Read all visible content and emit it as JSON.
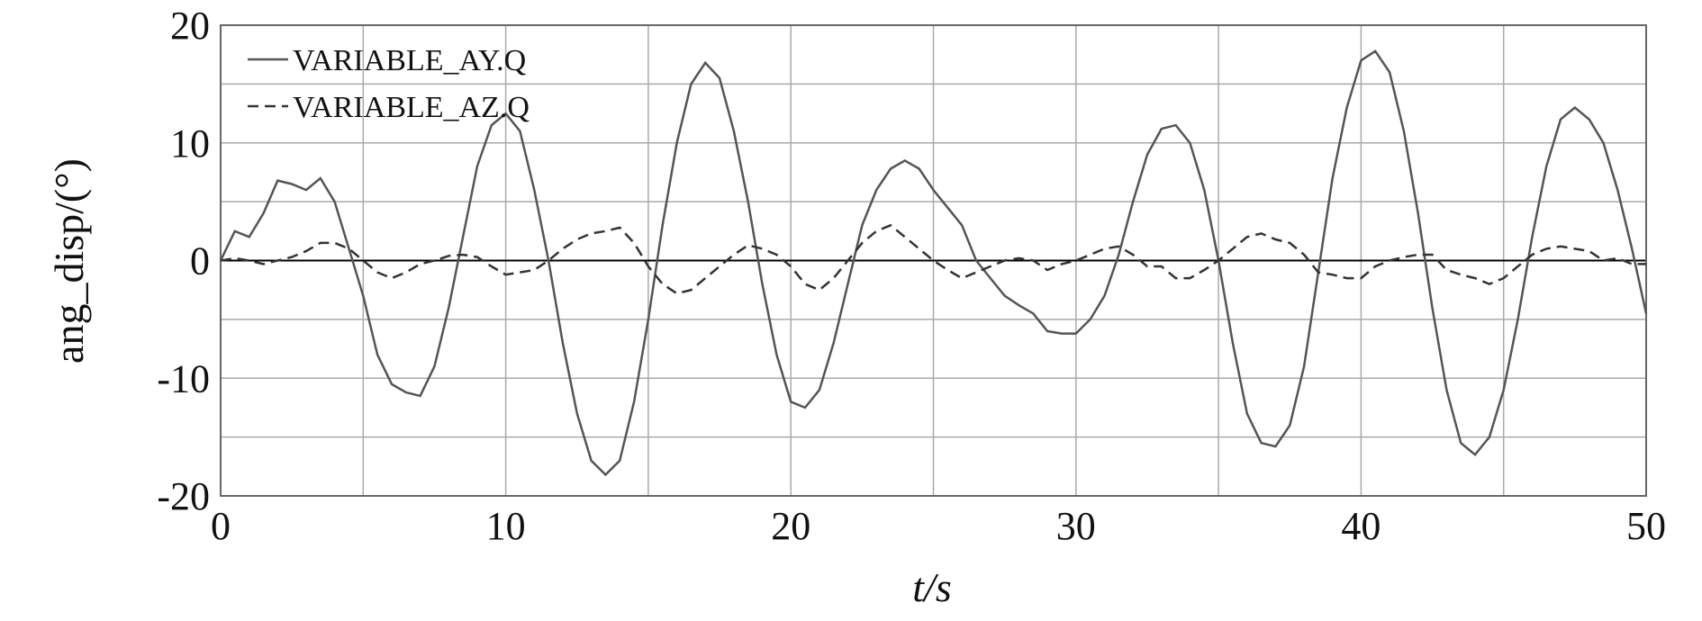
{
  "chart_data": {
    "type": "line",
    "x_label": "t/s",
    "y_label": "ang_disp/(°)",
    "x": [
      0,
      0.5,
      1,
      1.5,
      2,
      2.5,
      3,
      3.5,
      4,
      4.5,
      5,
      5.5,
      6,
      6.5,
      7,
      7.5,
      8,
      8.5,
      9,
      9.5,
      10,
      10.5,
      11,
      11.5,
      12,
      12.5,
      13,
      13.5,
      14,
      14.5,
      15,
      15.5,
      16,
      16.5,
      17,
      17.5,
      18,
      18.5,
      19,
      19.5,
      20,
      20.5,
      21,
      21.5,
      22,
      22.5,
      23,
      23.5,
      24,
      24.5,
      25,
      25.5,
      26,
      26.5,
      27,
      27.5,
      28,
      28.5,
      29,
      29.5,
      30,
      30.5,
      31,
      31.5,
      32,
      32.5,
      33,
      33.5,
      34,
      34.5,
      35,
      35.5,
      36,
      36.5,
      37,
      37.5,
      38,
      38.5,
      39,
      39.5,
      40,
      40.5,
      41,
      41.5,
      42,
      42.5,
      43,
      43.5,
      44,
      44.5,
      45,
      45.5,
      46,
      46.5,
      47,
      47.5,
      48,
      48.5,
      49,
      49.5,
      50
    ],
    "series": [
      {
        "name": "VARIABLE_AY.Q",
        "color": "#555555",
        "dash": "solid",
        "values": [
          0,
          2.5,
          2,
          4,
          6.8,
          6.5,
          6,
          7,
          5,
          1,
          -3,
          -8,
          -10.5,
          -11.2,
          -11.5,
          -9,
          -4,
          2,
          8,
          11.5,
          12.5,
          11,
          6,
          0,
          -7,
          -13,
          -17,
          -18.2,
          -17,
          -12,
          -5,
          3,
          10,
          15,
          16.8,
          15.5,
          11,
          5,
          -2,
          -8,
          -12,
          -12.5,
          -11,
          -7,
          -2,
          3,
          6,
          7.8,
          8.5,
          7.8,
          6,
          4.5,
          3,
          0,
          -1.5,
          -3,
          -3.8,
          -4.5,
          -6,
          -6.2,
          -6.2,
          -5,
          -3,
          0.5,
          5,
          9,
          11.2,
          11.5,
          10,
          6,
          0,
          -7,
          -13,
          -15.5,
          -15.8,
          -14,
          -9,
          -1,
          7,
          13,
          17,
          17.8,
          16,
          11,
          4,
          -4,
          -11,
          -15.5,
          -16.5,
          -15,
          -11,
          -5,
          2,
          8,
          12,
          13,
          12,
          10,
          6,
          1,
          -4.5
        ]
      },
      {
        "name": "VARIABLE_AZ.Q",
        "color": "#333333",
        "dash": "dashed",
        "values": [
          0,
          0.2,
          0,
          -0.3,
          0,
          0.3,
          0.8,
          1.5,
          1.5,
          1,
          0,
          -1,
          -1.5,
          -1,
          -0.3,
          0,
          0.4,
          0.5,
          0.3,
          -0.5,
          -1.2,
          -1,
          -0.8,
          0,
          1,
          1.8,
          2.3,
          2.5,
          2.8,
          1.5,
          -0.5,
          -2,
          -2.8,
          -2.5,
          -1.5,
          -0.5,
          0.5,
          1.3,
          1,
          0.5,
          -0.5,
          -2,
          -2.5,
          -1.5,
          0,
          1.5,
          2.5,
          3,
          2,
          1,
          0,
          -0.8,
          -1.5,
          -1,
          -0.5,
          0,
          0.2,
          0,
          -0.8,
          -0.3,
          0,
          0.5,
          1,
          1.2,
          0.5,
          -0.5,
          -0.5,
          -1.5,
          -1.5,
          -0.8,
          0,
          1,
          2,
          2.3,
          1.8,
          1.5,
          0.5,
          -1,
          -1.2,
          -1.5,
          -1.5,
          -0.5,
          0,
          0.3,
          0.5,
          0.5,
          -0.8,
          -1.2,
          -1.5,
          -2,
          -1.5,
          -0.5,
          0.5,
          1,
          1.2,
          1,
          0.8,
          0,
          0.2,
          -0.3,
          -0.3
        ]
      }
    ],
    "xlim": [
      0,
      50
    ],
    "xticks": [
      0,
      10,
      20,
      30,
      40,
      50
    ],
    "minor_xticks": [
      5,
      15,
      25,
      35,
      45
    ],
    "ylim": [
      -20,
      20
    ],
    "yticks": [
      -20,
      -10,
      0,
      10,
      20
    ],
    "minor_yticks": [
      -15,
      -5,
      5,
      15
    ],
    "grid": true,
    "legend": "upper left"
  }
}
